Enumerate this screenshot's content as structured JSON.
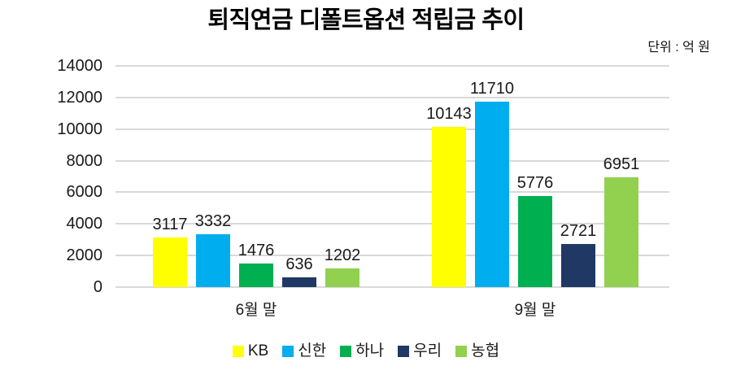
{
  "title": "퇴직연금 디폴트옵션 적립금 추이",
  "unit_label": "단위 : 억 원",
  "colors": {
    "background": "#ffffff",
    "grid": "#d9d9d9",
    "text": "#1a1a1a",
    "title": "#000000"
  },
  "chart_data": {
    "type": "bar",
    "title": "퇴직연금 디폴트옵션 적립금 추이",
    "subtitle": "단위 : 억 원",
    "categories": [
      "6월 말",
      "9월 말"
    ],
    "series": [
      {
        "name": "KB",
        "color": "#FFFF00",
        "values": [
          3117,
          10143
        ]
      },
      {
        "name": "신한",
        "color": "#00AEEF",
        "values": [
          3332,
          11710
        ]
      },
      {
        "name": "하나",
        "color": "#00B050",
        "values": [
          1476,
          5776
        ]
      },
      {
        "name": "우리",
        "color": "#1F3864",
        "values": [
          636,
          2721
        ]
      },
      {
        "name": "농협",
        "color": "#92D050",
        "values": [
          1202,
          6951
        ]
      }
    ],
    "ylim": [
      0,
      14000
    ],
    "yticks": [
      0,
      2000,
      4000,
      6000,
      8000,
      10000,
      12000,
      14000
    ],
    "grid": true,
    "legend_position": "bottom",
    "value_labels": true
  }
}
